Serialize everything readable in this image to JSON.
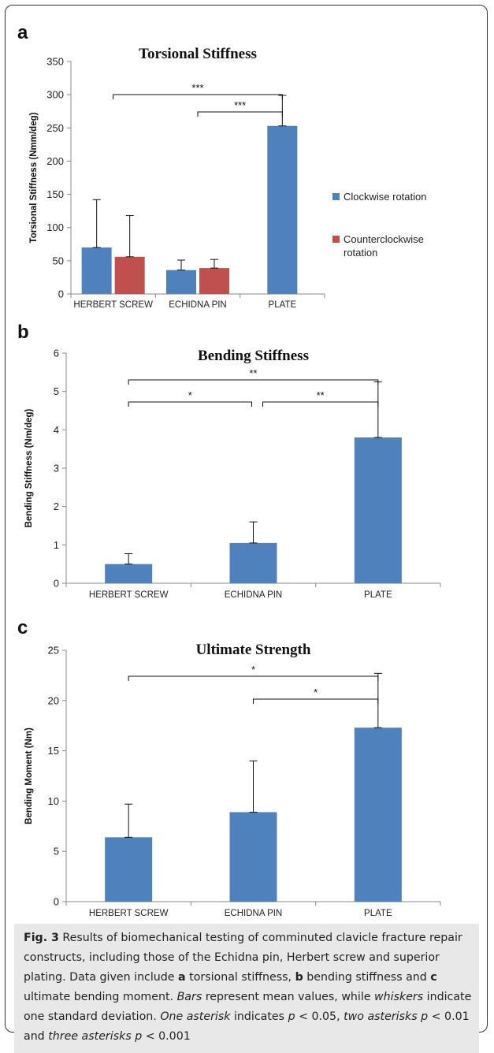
{
  "panels": [
    {
      "letter": "a"
    },
    {
      "letter": "b"
    },
    {
      "letter": "c"
    }
  ],
  "chart_data": [
    {
      "type": "bar",
      "title": "Torsional Stiffness",
      "xlabel": "",
      "ylabel": "Torsional Stiffness (Nmm/deg)",
      "categories": [
        "HERBERT SCREW",
        "ECHIDNA PIN",
        "PLATE"
      ],
      "ylim": [
        0,
        350
      ],
      "yticks": [
        0,
        50,
        100,
        150,
        200,
        250,
        300,
        350
      ],
      "grid": false,
      "legend": "right",
      "series": [
        {
          "name": "Clockwise rotation",
          "color": "#4F81BD",
          "values": [
            70,
            36,
            253
          ],
          "errors": [
            72,
            15,
            46
          ]
        },
        {
          "name": "Counterclockwise rotation",
          "color": "#C0504D",
          "values": [
            56,
            39,
            null
          ],
          "errors": [
            62,
            13,
            null
          ]
        }
      ],
      "significance": [
        {
          "from": 0,
          "to": 2,
          "label": "***"
        },
        {
          "from": 1,
          "to": 2,
          "label": "***"
        }
      ]
    },
    {
      "type": "bar",
      "title": "Bending Stiffness",
      "xlabel": "",
      "ylabel": "Bending Stiffness (Nm/deg)",
      "categories": [
        "HERBERT SCREW",
        "ECHIDNA PIN",
        "PLATE"
      ],
      "ylim": [
        0,
        6
      ],
      "yticks": [
        0,
        1,
        2,
        3,
        4,
        5,
        6
      ],
      "grid": false,
      "legend": "none",
      "series": [
        {
          "color": "#4F81BD",
          "values": [
            0.5,
            1.05,
            3.8
          ],
          "errors": [
            0.27,
            0.55,
            1.45
          ]
        }
      ],
      "significance": [
        {
          "from": 0,
          "to": 2,
          "label": "**"
        },
        {
          "from": 0,
          "to": 1,
          "label": "*"
        },
        {
          "from": 1,
          "to": 2,
          "label": "**"
        }
      ]
    },
    {
      "type": "bar",
      "title": "Ultimate Strength",
      "xlabel": "",
      "ylabel": "Bending Moment (Nm)",
      "categories": [
        "HERBERT SCREW",
        "ECHIDNA PIN",
        "PLATE"
      ],
      "ylim": [
        0,
        25
      ],
      "yticks": [
        0,
        5,
        10,
        15,
        20,
        25
      ],
      "grid": false,
      "legend": "none",
      "series": [
        {
          "color": "#4F81BD",
          "values": [
            6.4,
            8.9,
            17.3
          ],
          "errors": [
            3.3,
            5.1,
            5.4
          ]
        }
      ],
      "significance": [
        {
          "from": 0,
          "to": 2,
          "label": "*"
        },
        {
          "from": 1,
          "to": 2,
          "label": "*"
        }
      ]
    }
  ],
  "caption": {
    "fig_label": "Fig. 3",
    "text1": " Results of biomechanical testing of comminuted clavicle fracture repair constructs, including those of the Echidna pin, Herbert screw and superior plating. Data given include ",
    "a": "a",
    "text2": " torsional stiffness, ",
    "b": "b",
    "text3": " bending stiffness and ",
    "c": "c",
    "text4": " ultimate bending moment. ",
    "bars": "Bars",
    "text5": " represent mean values, while ",
    "whiskers": "whiskers",
    "text6": " indicate one standard deviation. ",
    "one_asterisk": "One asterisk",
    "text7": " indicates ",
    "p1": "p",
    "text8": " < 0.05, ",
    "two_asterisks": "two asterisks p",
    "text9": " < 0.01 and ",
    "three_asterisks": "three asterisks p",
    "text10": " < 0.001"
  }
}
